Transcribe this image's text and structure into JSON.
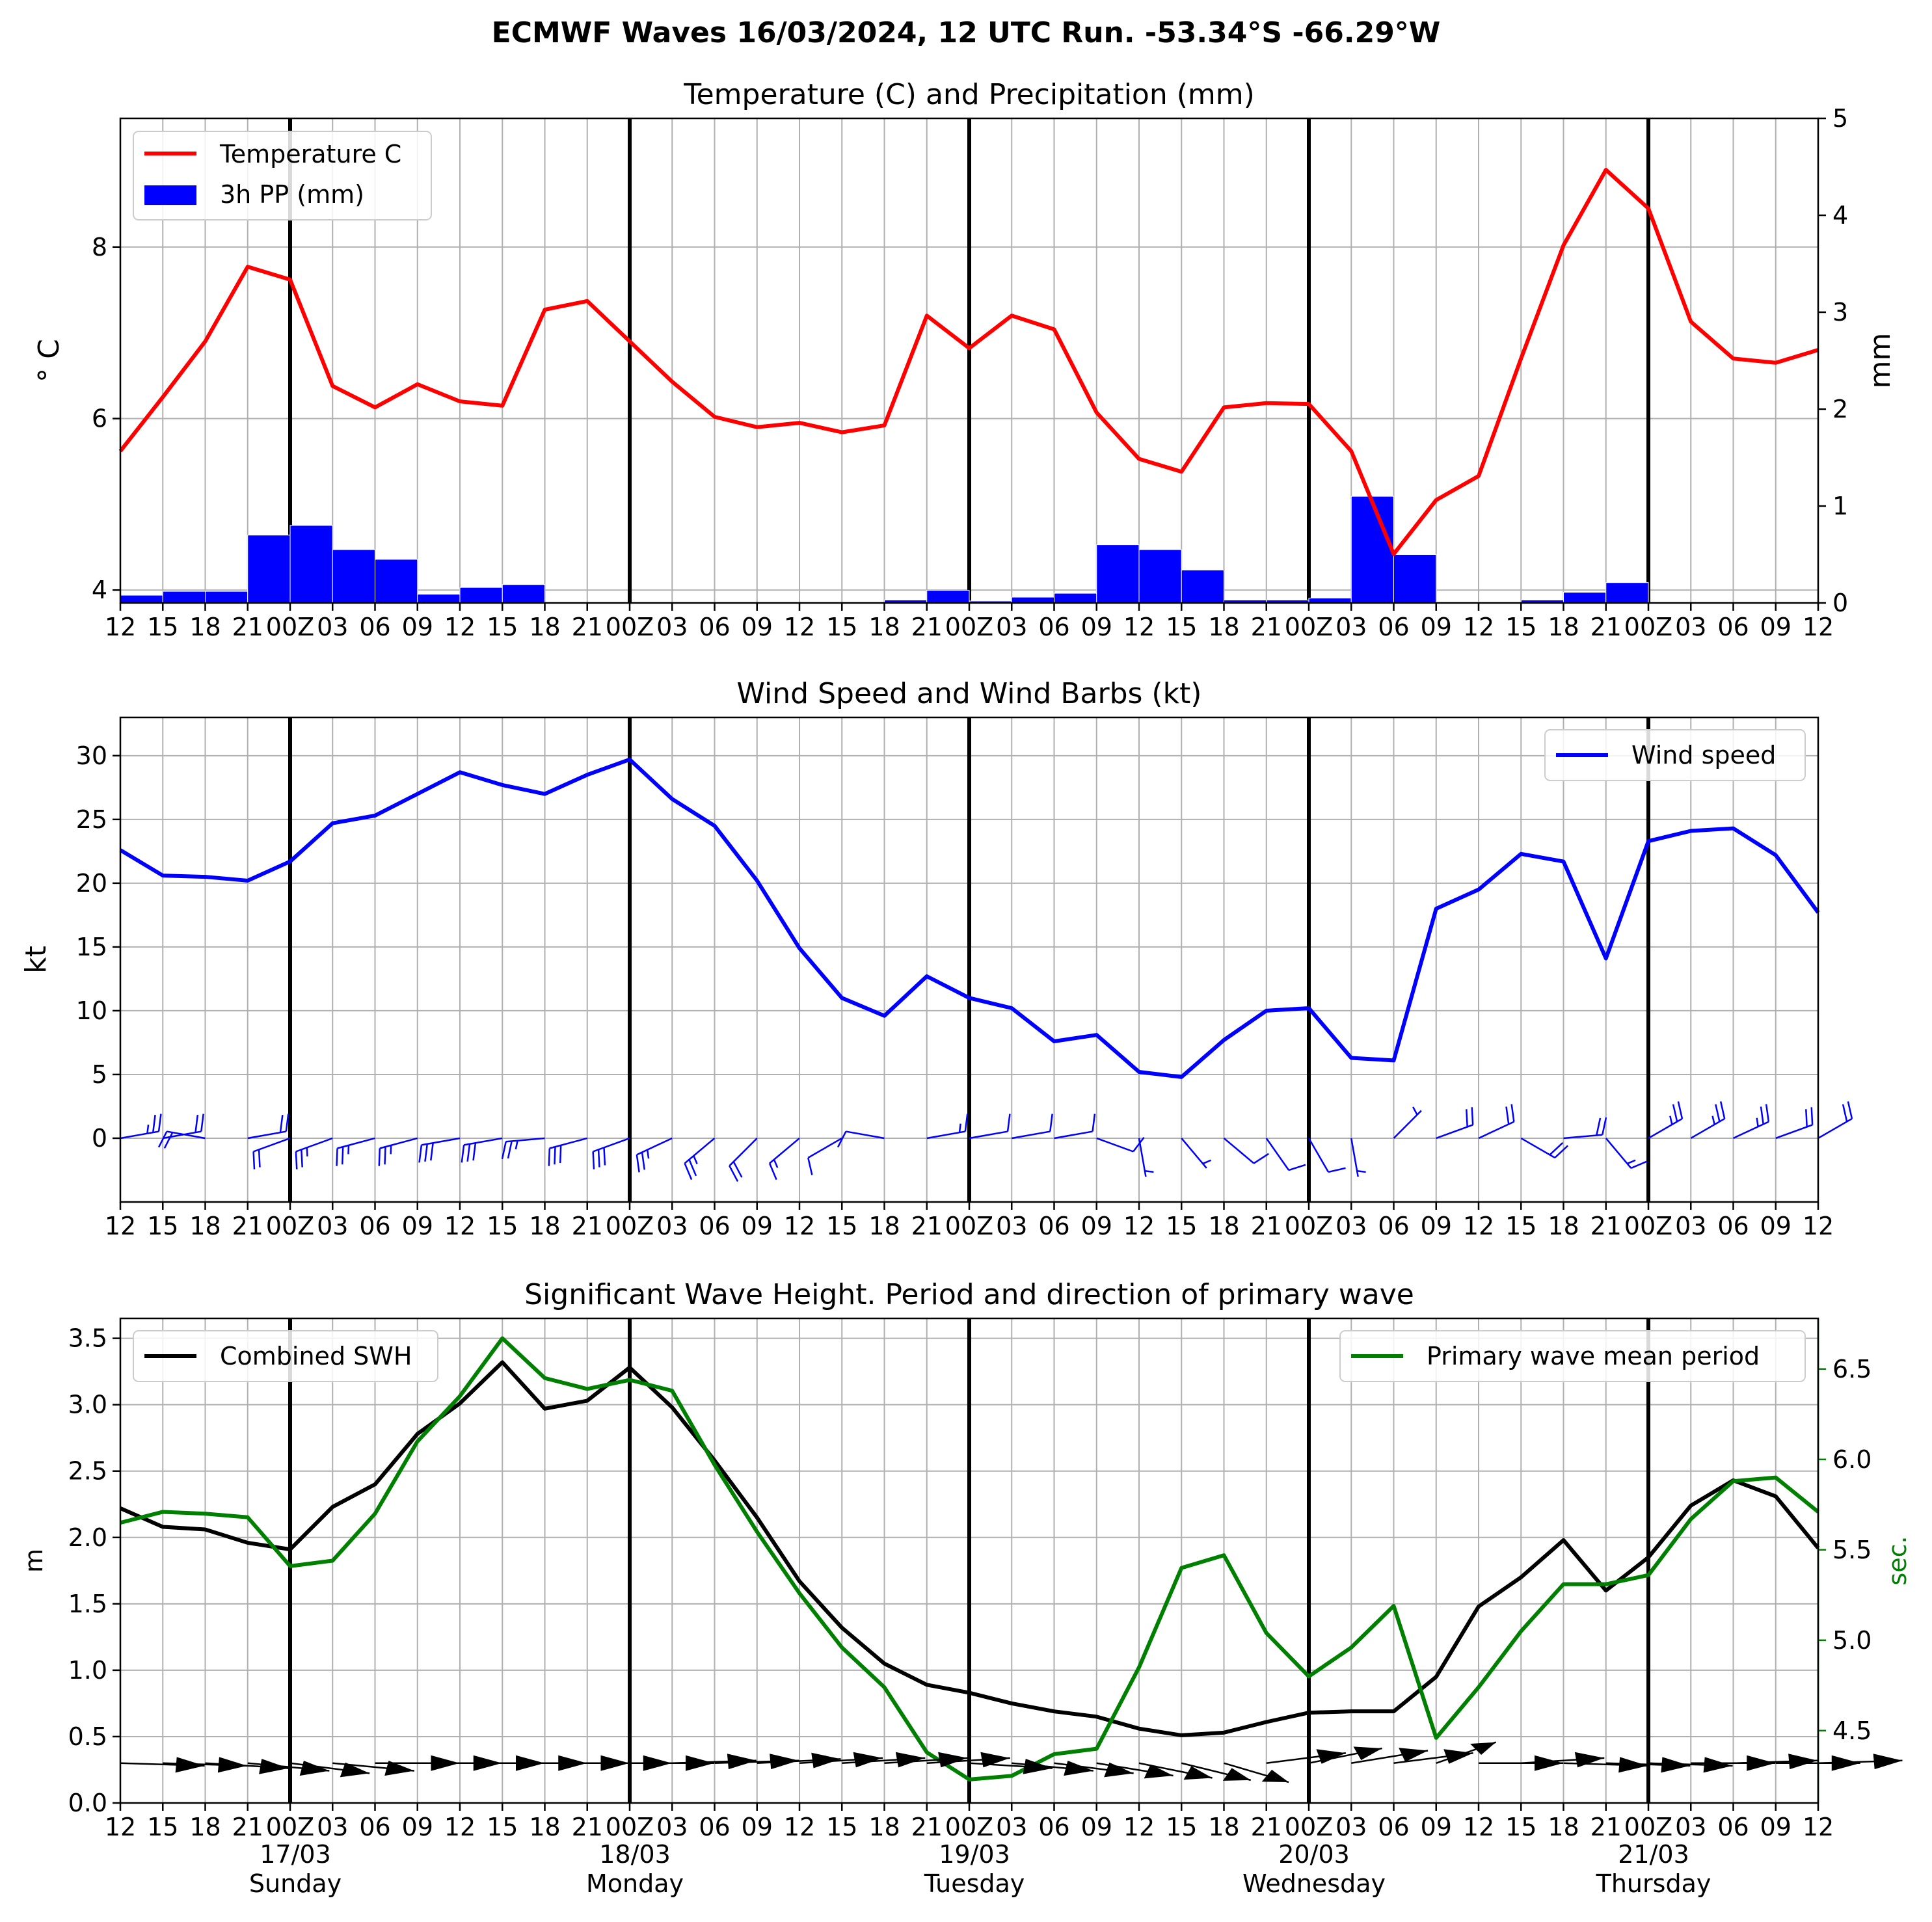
{
  "figure": {
    "suptitle": "ECMWF Waves 16/03/2024, 12 UTC Run. -53.34°S -66.29°W"
  },
  "chart_data": [
    {
      "type": "line",
      "title": "Temperature (C) and Precipitation (mm)",
      "ylabel": "$^\\circ$C",
      "ylabel_display": "° C",
      "y2label": "mm",
      "x_hours": [
        12,
        15,
        18,
        21,
        0,
        3,
        6,
        9,
        12,
        15,
        18,
        21,
        0,
        3,
        6,
        9,
        12,
        15,
        18,
        21,
        0,
        3,
        6,
        9,
        12,
        15,
        18,
        21,
        0,
        3,
        6,
        9,
        12,
        15,
        18,
        21,
        0,
        3,
        6,
        9,
        12
      ],
      "x_tick_labels": [
        "12",
        "15",
        "18",
        "21",
        "00Z",
        "03",
        "06",
        "09",
        "12",
        "15",
        "18",
        "21",
        "00Z",
        "03",
        "06",
        "09",
        "12",
        "15",
        "18",
        "21",
        "00Z",
        "03",
        "06",
        "09",
        "12",
        "15",
        "18",
        "21",
        "00Z",
        "03",
        "06",
        "09",
        "12",
        "15",
        "18",
        "21",
        "00Z",
        "03",
        "06",
        "09",
        "12"
      ],
      "ylim": [
        3.85,
        9.5
      ],
      "y2lim": [
        0,
        5
      ],
      "yticks": [
        "4",
        "6",
        "8"
      ],
      "y2ticks": [
        "0",
        "1",
        "2",
        "3",
        "4",
        "5"
      ],
      "legend": [
        "Temperature C",
        "3h PP (mm)"
      ],
      "legend_loc": "upper left",
      "series": [
        {
          "name": "Temperature C",
          "color": "#ff0000",
          "values": [
            5.62,
            6.25,
            6.9,
            7.77,
            7.62,
            6.38,
            6.13,
            6.4,
            6.2,
            6.15,
            7.27,
            7.37,
            6.9,
            6.43,
            6.02,
            5.9,
            5.95,
            5.84,
            5.92,
            7.2,
            6.82,
            7.2,
            7.04,
            6.07,
            5.53,
            5.38,
            6.13,
            6.18,
            6.17,
            5.62,
            4.42,
            5.05,
            5.33,
            6.7,
            8.02,
            8.9,
            8.45,
            7.13,
            6.7,
            6.65,
            6.8
          ]
        }
      ],
      "bars": {
        "name": "3h PP (mm)",
        "color": "#0000ff",
        "values": [
          0.08,
          0.12,
          0.12,
          0.7,
          0.8,
          0.55,
          0.45,
          0.09,
          0.16,
          0.19,
          0,
          0,
          0,
          0,
          0,
          0,
          0,
          0,
          0.03,
          0.13,
          0.02,
          0.06,
          0.1,
          0.6,
          0.55,
          0.34,
          0.03,
          0.03,
          0.05,
          1.1,
          0.5,
          0.01,
          0,
          0.03,
          0.11,
          0.21,
          0,
          0,
          0,
          0
        ]
      }
    },
    {
      "type": "line",
      "title": "Wind Speed and Wind Barbs (kt)",
      "ylabel": "kt",
      "ylim": [
        -5,
        33
      ],
      "yticks": [
        "0",
        "5",
        "10",
        "15",
        "20",
        "25",
        "30"
      ],
      "legend": [
        "Wind speed"
      ],
      "legend_loc": "upper right",
      "series": [
        {
          "name": "Wind speed",
          "color": "#0000ff",
          "values": [
            22.6,
            20.6,
            20.5,
            20.2,
            21.7,
            24.7,
            25.3,
            27.0,
            28.7,
            27.7,
            27.0,
            28.5,
            29.7,
            26.6,
            24.5,
            20.2,
            14.9,
            11.0,
            9.6,
            12.7,
            11.0,
            10.2,
            7.6,
            8.1,
            5.2,
            4.8,
            7.7,
            10.0,
            10.2,
            6.3,
            6.1,
            18.0,
            19.5,
            22.3,
            21.7,
            14.1,
            23.3,
            24.1,
            24.3,
            22.2,
            17.7
          ]
        }
      ],
      "barbs_dir_from_deg": [
        80,
        80,
        280,
        80,
        250,
        250,
        255,
        255,
        260,
        260,
        265,
        255,
        250,
        245,
        230,
        225,
        230,
        240,
        280,
        80,
        80,
        80,
        80,
        110,
        170,
        140,
        130,
        145,
        150,
        170,
        45,
        70,
        65,
        120,
        85,
        140,
        60,
        60,
        65,
        70,
        60
      ]
    },
    {
      "type": "line",
      "title": "Significant Wave Height. Period and direction of primary wave",
      "ylabel": "m",
      "y2label": "sec.",
      "ylim": [
        0,
        3.65
      ],
      "y2lim": [
        4.1,
        6.78
      ],
      "yticks": [
        "0.0",
        "0.5",
        "1.0",
        "1.5",
        "2.0",
        "2.5",
        "3.0",
        "3.5"
      ],
      "y2ticks": [
        "4.5",
        "5.0",
        "5.5",
        "6.0",
        "6.5"
      ],
      "legend": [
        "Combined SWH",
        "Primary wave mean period"
      ],
      "series": [
        {
          "name": "Combined SWH",
          "color": "#000000",
          "values": [
            2.22,
            2.08,
            2.06,
            1.96,
            1.91,
            2.23,
            2.4,
            2.78,
            3.01,
            3.32,
            2.97,
            3.03,
            3.28,
            2.98,
            2.58,
            2.15,
            1.67,
            1.32,
            1.05,
            0.89,
            0.83,
            0.75,
            0.69,
            0.65,
            0.56,
            0.51,
            0.53,
            0.61,
            0.68,
            0.69,
            0.69,
            0.95,
            1.48,
            1.7,
            1.98,
            1.6,
            1.85,
            2.24,
            2.43,
            2.31,
            1.92
          ]
        },
        {
          "name": "Primary wave mean period",
          "color": "#008000",
          "values": [
            5.65,
            5.71,
            5.7,
            5.68,
            5.41,
            5.44,
            5.7,
            6.1,
            6.35,
            6.67,
            6.45,
            6.39,
            6.44,
            6.38,
            5.97,
            5.6,
            5.26,
            4.96,
            4.74,
            4.38,
            4.23,
            4.25,
            4.37,
            4.4,
            4.85,
            5.4,
            5.47,
            5.04,
            4.8,
            4.96,
            5.19,
            4.46,
            4.74,
            5.05,
            5.31,
            5.31,
            5.36,
            5.67,
            5.88,
            5.9,
            5.71
          ]
        }
      ],
      "direction_arrows_to_deg": [
        5,
        5,
        10,
        15,
        20,
        15,
        0,
        0,
        0,
        0,
        0,
        0,
        0,
        -5,
        -5,
        -8,
        -10,
        -10,
        -10,
        -10,
        10,
        15,
        20,
        25,
        30,
        35,
        40,
        -20,
        -30,
        -25,
        -20,
        -45,
        0,
        -10,
        5,
        5,
        5,
        0,
        -5,
        0,
        -5
      ],
      "date_labels": [
        {
          "hour_index": 4,
          "date": "17/03",
          "day": "Sunday"
        },
        {
          "hour_index": 12,
          "date": "18/03",
          "day": "Monday"
        },
        {
          "hour_index": 20,
          "date": "19/03",
          "day": "Tuesday"
        },
        {
          "hour_index": 28,
          "date": "20/03",
          "day": "Wednesday"
        },
        {
          "hour_index": 36,
          "date": "21/03",
          "day": "Thursday"
        }
      ]
    }
  ]
}
